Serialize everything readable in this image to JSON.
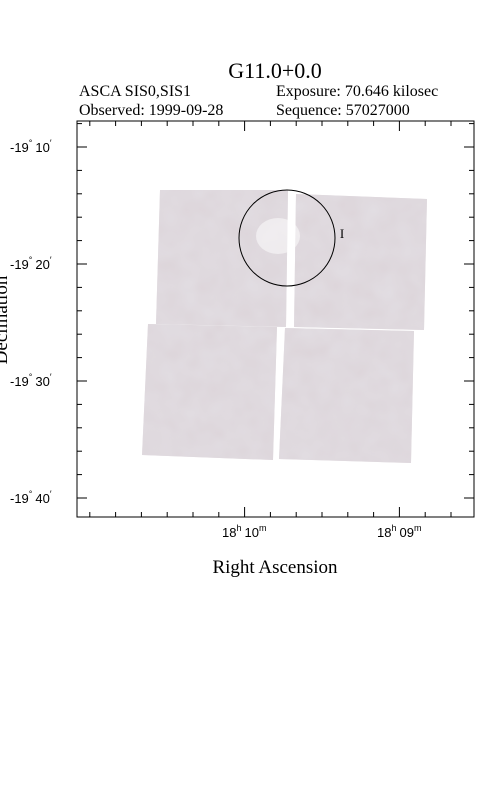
{
  "header": {
    "title": "G11.0+0.0",
    "instrument": "ASCA SIS0,SIS1",
    "exposure": "Exposure: 70.646 kilosec",
    "observed": "Observed: 1999-09-28",
    "sequence": "Sequence: 57027000"
  },
  "axes": {
    "x_label": "Right Ascension",
    "y_label": "Declination",
    "y_ticks": [
      {
        "deg": "-19",
        "deg_mark": "°",
        "min": "10",
        "min_mark": "′"
      },
      {
        "deg": "-19",
        "deg_mark": "°",
        "min": "20",
        "min_mark": "′"
      },
      {
        "deg": "-19",
        "deg_mark": "°",
        "min": "30",
        "min_mark": "′"
      },
      {
        "deg": "-19",
        "deg_mark": "°",
        "min": "40",
        "min_mark": "′"
      }
    ],
    "x_ticks": [
      {
        "hour": "18",
        "hour_mark": "h",
        "min": "10",
        "min_mark": "m"
      },
      {
        "hour": "18",
        "hour_mark": "h",
        "min": "09",
        "min_mark": "m"
      }
    ]
  }
}
